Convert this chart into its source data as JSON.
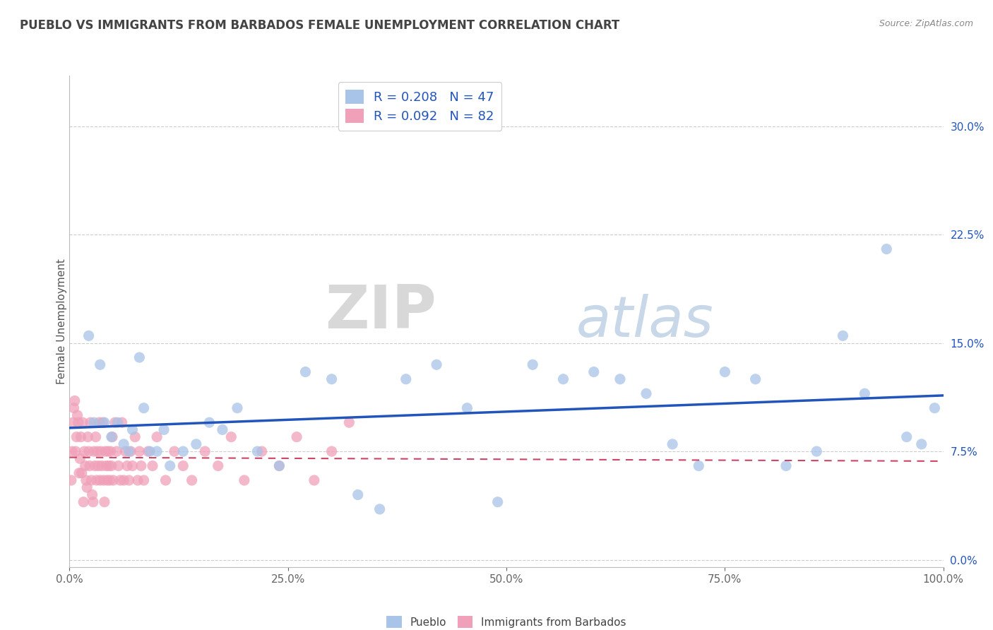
{
  "title": "PUEBLO VS IMMIGRANTS FROM BARBADOS FEMALE UNEMPLOYMENT CORRELATION CHART",
  "source": "Source: ZipAtlas.com",
  "ylabel": "Female Unemployment",
  "legend_bottom": [
    "Pueblo",
    "Immigrants from Barbados"
  ],
  "pueblo_R": 0.208,
  "pueblo_N": 47,
  "barbados_R": 0.092,
  "barbados_N": 82,
  "pueblo_color": "#a8c4e8",
  "barbados_color": "#f0a0b8",
  "pueblo_line_color": "#2255bb",
  "barbados_line_color": "#cc4466",
  "background_color": "#ffffff",
  "xlim": [
    0.0,
    1.0
  ],
  "ylim": [
    -0.005,
    0.335
  ],
  "yticks": [
    0.0,
    0.075,
    0.15,
    0.225,
    0.3
  ],
  "ytick_labels": [
    "0.0%",
    "7.5%",
    "15.0%",
    "22.5%",
    "30.0%"
  ],
  "xticks": [
    0.0,
    0.25,
    0.5,
    0.75,
    1.0
  ],
  "xtick_labels": [
    "0.0%",
    "25.0%",
    "50.0%",
    "75.0%",
    "100.0%"
  ],
  "pueblo_x": [
    0.022,
    0.028,
    0.035,
    0.04,
    0.048,
    0.055,
    0.062,
    0.068,
    0.072,
    0.08,
    0.085,
    0.092,
    0.1,
    0.108,
    0.115,
    0.13,
    0.145,
    0.16,
    0.175,
    0.192,
    0.215,
    0.24,
    0.27,
    0.3,
    0.33,
    0.355,
    0.385,
    0.42,
    0.455,
    0.49,
    0.53,
    0.565,
    0.6,
    0.63,
    0.66,
    0.69,
    0.72,
    0.75,
    0.785,
    0.82,
    0.855,
    0.885,
    0.91,
    0.935,
    0.958,
    0.975,
    0.99
  ],
  "pueblo_y": [
    0.155,
    0.095,
    0.135,
    0.095,
    0.085,
    0.095,
    0.08,
    0.075,
    0.09,
    0.14,
    0.105,
    0.075,
    0.075,
    0.09,
    0.065,
    0.075,
    0.08,
    0.095,
    0.09,
    0.105,
    0.075,
    0.065,
    0.13,
    0.125,
    0.045,
    0.035,
    0.125,
    0.135,
    0.105,
    0.04,
    0.135,
    0.125,
    0.13,
    0.125,
    0.115,
    0.08,
    0.065,
    0.13,
    0.125,
    0.065,
    0.075,
    0.155,
    0.115,
    0.215,
    0.085,
    0.08,
    0.105
  ],
  "barbados_x": [
    0.002,
    0.003,
    0.004,
    0.005,
    0.006,
    0.007,
    0.008,
    0.009,
    0.01,
    0.011,
    0.012,
    0.013,
    0.014,
    0.015,
    0.016,
    0.017,
    0.018,
    0.019,
    0.02,
    0.021,
    0.022,
    0.023,
    0.024,
    0.025,
    0.026,
    0.027,
    0.028,
    0.029,
    0.03,
    0.031,
    0.032,
    0.033,
    0.034,
    0.035,
    0.036,
    0.037,
    0.038,
    0.039,
    0.04,
    0.041,
    0.042,
    0.043,
    0.044,
    0.045,
    0.046,
    0.047,
    0.048,
    0.049,
    0.05,
    0.052,
    0.054,
    0.056,
    0.058,
    0.06,
    0.062,
    0.064,
    0.066,
    0.068,
    0.07,
    0.072,
    0.075,
    0.078,
    0.08,
    0.082,
    0.085,
    0.09,
    0.095,
    0.1,
    0.11,
    0.12,
    0.13,
    0.14,
    0.155,
    0.17,
    0.185,
    0.2,
    0.22,
    0.24,
    0.26,
    0.28,
    0.3,
    0.32
  ],
  "barbados_y": [
    0.055,
    0.075,
    0.095,
    0.105,
    0.11,
    0.075,
    0.085,
    0.1,
    0.095,
    0.06,
    0.07,
    0.085,
    0.06,
    0.095,
    0.04,
    0.075,
    0.065,
    0.055,
    0.05,
    0.085,
    0.075,
    0.065,
    0.095,
    0.055,
    0.045,
    0.04,
    0.075,
    0.065,
    0.085,
    0.055,
    0.075,
    0.065,
    0.095,
    0.055,
    0.075,
    0.065,
    0.095,
    0.055,
    0.04,
    0.075,
    0.065,
    0.055,
    0.075,
    0.065,
    0.055,
    0.075,
    0.065,
    0.085,
    0.055,
    0.095,
    0.075,
    0.065,
    0.055,
    0.095,
    0.055,
    0.075,
    0.065,
    0.055,
    0.075,
    0.065,
    0.085,
    0.055,
    0.075,
    0.065,
    0.055,
    0.075,
    0.065,
    0.085,
    0.055,
    0.075,
    0.065,
    0.055,
    0.075,
    0.065,
    0.085,
    0.055,
    0.075,
    0.065,
    0.085,
    0.055,
    0.075,
    0.095
  ]
}
